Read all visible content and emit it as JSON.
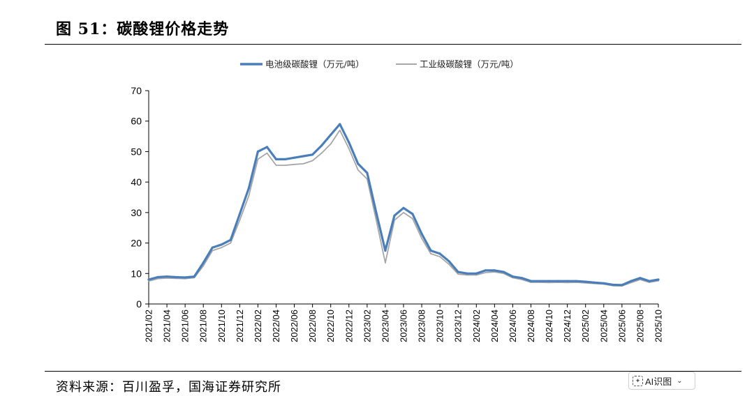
{
  "header": {
    "title": "图 51：碳酸锂价格走势"
  },
  "footer": {
    "source": "资料来源：百川盈孚，国海证券研究所"
  },
  "ai_badge": {
    "label": "AI识图",
    "icon": "ai-scan-icon",
    "chevron": "chevron-down-icon"
  },
  "chart_data": {
    "type": "line",
    "title": "",
    "xlabel": "",
    "ylabel": "",
    "ylim": [
      0,
      70
    ],
    "yticks": [
      0,
      10,
      20,
      30,
      40,
      50,
      60,
      70
    ],
    "xlim": [
      "2021-02",
      "2025-10"
    ],
    "xtick_labels": [
      "2021/02",
      "2021/04",
      "2021/06",
      "2021/08",
      "2021/10",
      "2021/12",
      "2022/02",
      "2022/04",
      "2022/06",
      "2022/08",
      "2022/10",
      "2022/12",
      "2023/02",
      "2023/04",
      "2023/06",
      "2023/08",
      "2023/10",
      "2023/12",
      "2024/02",
      "2024/04",
      "2024/06",
      "2024/08",
      "2024/10",
      "2024/12",
      "2025/02",
      "2025/04",
      "2025/06",
      "2025/08",
      "2025/10"
    ],
    "grid": false,
    "legend_position": "top-center",
    "colors": {
      "battery": "#4a7ebb",
      "industrial": "#a6a6a6"
    },
    "series": [
      {
        "name": "电池级碳酸锂（万元/吨）",
        "x": [
          "2021-02",
          "2021-03",
          "2021-04",
          "2021-05",
          "2021-06",
          "2021-07",
          "2021-08",
          "2021-09",
          "2021-10",
          "2021-11",
          "2021-12",
          "2022-01",
          "2022-02",
          "2022-03",
          "2022-04",
          "2022-05",
          "2022-06",
          "2022-07",
          "2022-08",
          "2022-09",
          "2022-10",
          "2022-11",
          "2022-12",
          "2023-01",
          "2023-02",
          "2023-03",
          "2023-04",
          "2023-05",
          "2023-06",
          "2023-07",
          "2023-08",
          "2023-09",
          "2023-10",
          "2023-11",
          "2023-12",
          "2024-01",
          "2024-02",
          "2024-03",
          "2024-04",
          "2024-05",
          "2024-06",
          "2024-07",
          "2024-08",
          "2024-09",
          "2024-10",
          "2024-11",
          "2024-12",
          "2025-01",
          "2025-02",
          "2025-03",
          "2025-04",
          "2025-05",
          "2025-06",
          "2025-07",
          "2025-08",
          "2025-09",
          "2025-10"
        ],
        "values": [
          8,
          8.8,
          9,
          8.8,
          8.7,
          9,
          13.5,
          18.5,
          19.5,
          21,
          29.5,
          38,
          50,
          51.5,
          47.5,
          47.5,
          48,
          48.5,
          49,
          52,
          55.5,
          59,
          53,
          46,
          43,
          30,
          17.5,
          29,
          31.5,
          29.5,
          23,
          17.5,
          16.5,
          14,
          10.5,
          10,
          10,
          11,
          11,
          10.5,
          9,
          8.5,
          7.5,
          7.5,
          7.5,
          7.5,
          7.5,
          7.5,
          7.3,
          7,
          6.8,
          6.3,
          6.2,
          7.5,
          8.5,
          7.5,
          8
        ]
      },
      {
        "name": "工业级碳酸锂（万元/吨）",
        "x": [
          "2021-02",
          "2021-03",
          "2021-04",
          "2021-05",
          "2021-06",
          "2021-07",
          "2021-08",
          "2021-09",
          "2021-10",
          "2021-11",
          "2021-12",
          "2022-01",
          "2022-02",
          "2022-03",
          "2022-04",
          "2022-05",
          "2022-06",
          "2022-07",
          "2022-08",
          "2022-09",
          "2022-10",
          "2022-11",
          "2022-12",
          "2023-01",
          "2023-02",
          "2023-03",
          "2023-04",
          "2023-05",
          "2023-06",
          "2023-07",
          "2023-08",
          "2023-09",
          "2023-10",
          "2023-11",
          "2023-12",
          "2024-01",
          "2024-02",
          "2024-03",
          "2024-04",
          "2024-05",
          "2024-06",
          "2024-07",
          "2024-08",
          "2024-09",
          "2024-10",
          "2024-11",
          "2024-12",
          "2025-01",
          "2025-02",
          "2025-03",
          "2025-04",
          "2025-05",
          "2025-06",
          "2025-07",
          "2025-08",
          "2025-09",
          "2025-10"
        ],
        "values": [
          7.5,
          8.3,
          8.5,
          8.4,
          8.3,
          8.6,
          12.5,
          17.5,
          18.5,
          20,
          27.5,
          35.5,
          47.5,
          49.5,
          45.5,
          45.5,
          45.8,
          46,
          47,
          49.5,
          52.5,
          57,
          51,
          44,
          41,
          27.5,
          13.5,
          27.5,
          30,
          28,
          21.5,
          16.5,
          15.5,
          13,
          9.8,
          9.5,
          9.5,
          10.3,
          10.5,
          10,
          8.6,
          8,
          7.1,
          7.1,
          7,
          7.1,
          7,
          7.1,
          6.9,
          6.7,
          6.5,
          6,
          5.9,
          7,
          8,
          7.1,
          7.6
        ]
      }
    ]
  }
}
